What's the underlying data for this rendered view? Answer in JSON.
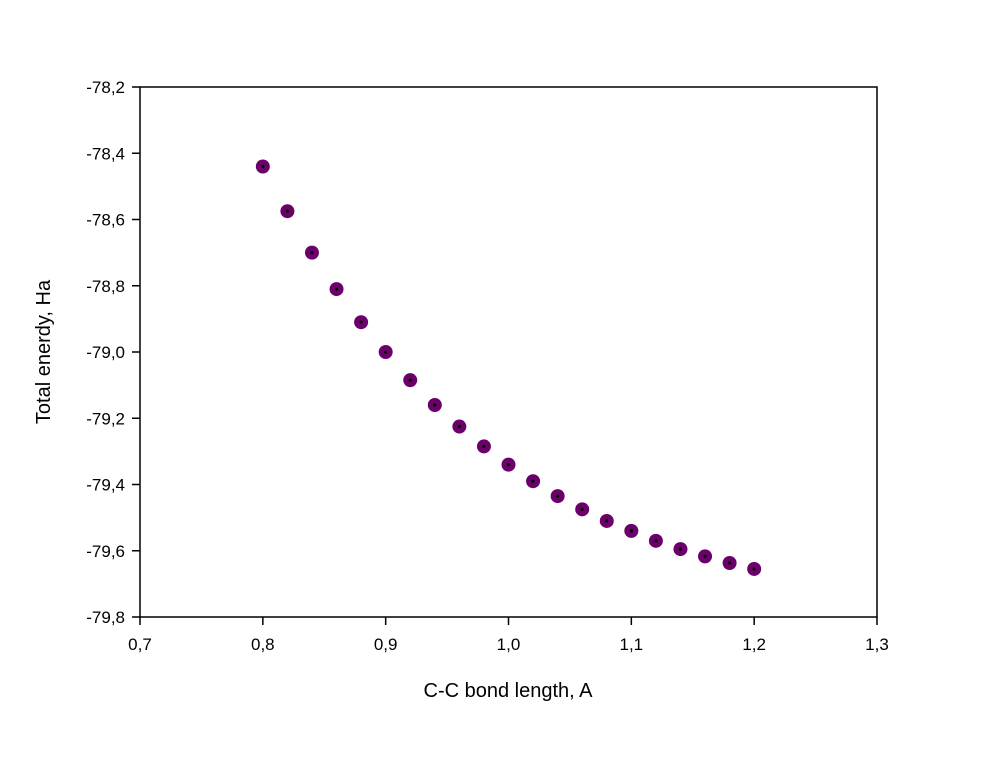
{
  "chart_data": {
    "type": "scatter",
    "title": "",
    "xlabel": "C-C bond length, A",
    "ylabel": "Total enerdy, Ha",
    "xlim": [
      0.7,
      1.3
    ],
    "ylim": [
      -79.8,
      -78.2
    ],
    "x_ticks": [
      "0,7",
      "0,8",
      "0,9",
      "1,0",
      "1,1",
      "1,2",
      "1,3"
    ],
    "y_ticks": [
      "-78,2",
      "-78,4",
      "-78,6",
      "-78,8",
      "-79,0",
      "-79,2",
      "-79,4",
      "-79,6",
      "-79,8"
    ],
    "x_tick_values": [
      0.7,
      0.8,
      0.9,
      1.0,
      1.1,
      1.2,
      1.3
    ],
    "y_tick_values": [
      -78.2,
      -78.4,
      -78.6,
      -78.8,
      -79.0,
      -79.2,
      -79.4,
      -79.6,
      -79.8
    ],
    "grid": false,
    "marker_color": "#6b006b",
    "marker_center_color": "#000000",
    "series": [
      {
        "x": [
          0.8,
          0.82,
          0.84,
          0.86,
          0.88,
          0.9,
          0.92,
          0.94,
          0.96,
          0.98,
          1.0,
          1.02,
          1.04,
          1.06,
          1.08,
          1.1,
          1.12,
          1.14,
          1.16,
          1.18,
          1.2
        ],
        "y": [
          -78.44,
          -78.575,
          -78.7,
          -78.81,
          -78.91,
          -79.0,
          -79.085,
          -79.16,
          -79.225,
          -79.285,
          -79.34,
          -79.39,
          -79.435,
          -79.475,
          -79.51,
          -79.54,
          -79.57,
          -79.595,
          -79.617,
          -79.637,
          -79.655
        ]
      }
    ]
  }
}
